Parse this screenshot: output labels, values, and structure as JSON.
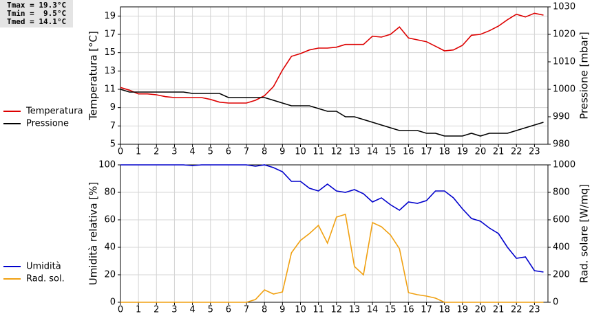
{
  "chart_data": [
    {
      "type": "line",
      "annotations": [
        "Tmax = 19.3°C",
        "Tmin =  9.5°C",
        "Tmed = 14.1°C"
      ],
      "ylabel": "Temperatura [°C]",
      "y2label": "Pressione [mbar]",
      "x": [
        0,
        0.5,
        1,
        1.5,
        2,
        2.5,
        3,
        3.5,
        4,
        4.5,
        5,
        5.5,
        6,
        6.5,
        7,
        7.5,
        8,
        8.5,
        9,
        9.5,
        10,
        10.5,
        11,
        11.5,
        12,
        12.5,
        13,
        13.5,
        14,
        14.5,
        15,
        15.5,
        16,
        16.5,
        17,
        17.5,
        18,
        18.5,
        19,
        19.5,
        20,
        20.5,
        21,
        21.5,
        22,
        22.5,
        23,
        23.5
      ],
      "xlim": [
        0,
        23.75
      ],
      "xticks": [
        0,
        1,
        2,
        3,
        4,
        5,
        6,
        7,
        8,
        9,
        10,
        11,
        12,
        13,
        14,
        15,
        16,
        17,
        18,
        19,
        20,
        21,
        22,
        23
      ],
      "ylim": [
        5,
        20
      ],
      "yticks": [
        5,
        7,
        9,
        11,
        13,
        15,
        17,
        19
      ],
      "y2lim": [
        980,
        1030
      ],
      "y2ticks": [
        980,
        990,
        1000,
        1010,
        1020,
        1030
      ],
      "grid": true,
      "series": [
        {
          "name": "Temperatura",
          "color": "#dd0000",
          "values": [
            11.2,
            10.9,
            10.5,
            10.5,
            10.4,
            10.2,
            10.1,
            10.1,
            10.1,
            10.1,
            9.9,
            9.6,
            9.5,
            9.5,
            9.5,
            9.8,
            10.3,
            11.3,
            13.1,
            14.6,
            14.9,
            15.3,
            15.5,
            15.5,
            15.6,
            15.9,
            15.9,
            15.9,
            16.8,
            16.7,
            17.0,
            17.8,
            16.6,
            16.4,
            16.2,
            15.7,
            15.2,
            15.3,
            15.8,
            16.9,
            17.0,
            17.4,
            17.9,
            18.6,
            19.2,
            18.9,
            19.3,
            19.1
          ]
        },
        {
          "name": "Pressione",
          "color": "#000000",
          "axis": "y2",
          "values": [
            1000,
            999,
            999,
            999,
            999,
            999,
            999,
            999,
            998.5,
            998.5,
            998.5,
            998.5,
            997,
            997,
            997,
            997,
            997,
            996,
            995,
            994,
            994,
            994,
            993,
            992,
            992,
            990,
            990,
            989,
            988,
            987,
            986,
            985,
            985,
            985,
            984,
            984,
            983,
            983,
            983,
            984,
            983,
            984,
            984,
            984,
            985,
            986,
            987,
            988
          ]
        }
      ]
    },
    {
      "type": "line",
      "ylabel": "Umidità relativa [%]",
      "y2label": "Rad. solare [W/mq]",
      "x": [
        0,
        0.5,
        1,
        1.5,
        2,
        2.5,
        3,
        3.5,
        4,
        4.5,
        5,
        5.5,
        6,
        6.5,
        7,
        7.5,
        8,
        8.5,
        9,
        9.5,
        10,
        10.5,
        11,
        11.5,
        12,
        12.5,
        13,
        13.5,
        14,
        14.5,
        15,
        15.5,
        16,
        16.5,
        17,
        17.5,
        18,
        18.5,
        19,
        19.5,
        20,
        20.5,
        21,
        21.5,
        22,
        22.5,
        23,
        23.5
      ],
      "xlim": [
        0,
        23.75
      ],
      "xticks": [
        0,
        1,
        2,
        3,
        4,
        5,
        6,
        7,
        8,
        9,
        10,
        11,
        12,
        13,
        14,
        15,
        16,
        17,
        18,
        19,
        20,
        21,
        22,
        23
      ],
      "ylim": [
        0,
        100
      ],
      "yticks": [
        0,
        20,
        40,
        60,
        80,
        100
      ],
      "y2lim": [
        0,
        1000
      ],
      "y2ticks": [
        0,
        200,
        400,
        600,
        800,
        1000
      ],
      "grid": true,
      "series": [
        {
          "name": "Umidità",
          "color": "#0000cc",
          "values": [
            100,
            100,
            100,
            100,
            100,
            100,
            100,
            100,
            99.5,
            100,
            100,
            100,
            100,
            100,
            100,
            99,
            100,
            98,
            95,
            88,
            88,
            83,
            81,
            86,
            81,
            80,
            82,
            79,
            73,
            76,
            71,
            67,
            73,
            72,
            74,
            81,
            81,
            76,
            68,
            61,
            59,
            54,
            50,
            40,
            32,
            33,
            23,
            22
          ]
        },
        {
          "name": "Rad. sol.",
          "color": "#f0a010",
          "axis": "y2",
          "values": [
            0,
            0,
            0,
            0,
            0,
            0,
            0,
            0,
            0,
            0,
            0,
            0,
            0,
            0,
            0,
            20,
            90,
            60,
            75,
            360,
            450,
            500,
            560,
            430,
            620,
            640,
            260,
            200,
            580,
            550,
            490,
            390,
            70,
            55,
            45,
            30,
            0,
            0,
            0,
            0,
            0,
            0,
            0,
            0,
            0,
            0,
            0,
            0
          ]
        }
      ]
    }
  ]
}
